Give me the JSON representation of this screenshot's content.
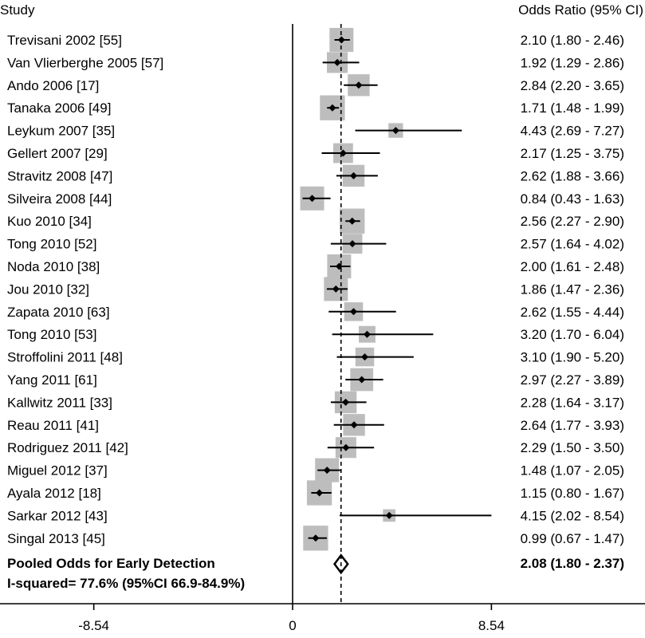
{
  "chart_data": {
    "type": "forest",
    "left_header": "Study",
    "right_header": "Odds Ratio (95% CI)",
    "x_ticks": [
      "-8.54",
      "0",
      "8.54"
    ],
    "x_tick_values": [
      -8.54,
      0,
      8.54
    ],
    "xlim": [
      -12.5,
      14.6
    ],
    "pooled_reference": 2.08,
    "studies": [
      {
        "label": "Trevisani 2002 [55]",
        "or": 2.1,
        "lo": 1.8,
        "hi": 2.46,
        "ci_text": "2.10 (1.80 - 2.46)",
        "weight": 1.0
      },
      {
        "label": "Van Vlierberghe 2005 [57]",
        "or": 1.92,
        "lo": 1.29,
        "hi": 2.86,
        "ci_text": "1.92 (1.29 - 2.86)",
        "weight": 0.85
      },
      {
        "label": "Ando 2006 [17]",
        "or": 2.84,
        "lo": 2.2,
        "hi": 3.65,
        "ci_text": "2.84 (2.20 - 3.65)",
        "weight": 0.9
      },
      {
        "label": "Tanaka 2006 [49]",
        "or": 1.71,
        "lo": 1.48,
        "hi": 1.99,
        "ci_text": "1.71 (1.48 - 1.99)",
        "weight": 1.05
      },
      {
        "label": "Leykum 2007 [35]",
        "or": 4.43,
        "lo": 2.69,
        "hi": 7.27,
        "ci_text": "4.43 (2.69 - 7.27)",
        "weight": 0.55
      },
      {
        "label": "Gellert 2007 [29]",
        "or": 2.17,
        "lo": 1.25,
        "hi": 3.75,
        "ci_text": "2.17 (1.25 - 3.75)",
        "weight": 0.8
      },
      {
        "label": "Stravitz 2008 [47]",
        "or": 2.62,
        "lo": 1.88,
        "hi": 3.66,
        "ci_text": "2.62 (1.88 - 3.66)",
        "weight": 0.9
      },
      {
        "label": "Silveira 2008 [44]",
        "or": 0.84,
        "lo": 0.43,
        "hi": 1.63,
        "ci_text": "0.84 (0.43 - 1.63)",
        "weight": 1.0
      },
      {
        "label": "Kuo 2010 [34]",
        "or": 2.56,
        "lo": 2.27,
        "hi": 2.9,
        "ci_text": "2.56 (2.27 - 2.90)",
        "weight": 1.05
      },
      {
        "label": "Tong 2010 [52]",
        "or": 2.57,
        "lo": 1.64,
        "hi": 4.02,
        "ci_text": "2.57 (1.64 - 4.02)",
        "weight": 0.8
      },
      {
        "label": "Noda 2010 [38]",
        "or": 2.0,
        "lo": 1.61,
        "hi": 2.48,
        "ci_text": "2.00 (1.61 - 2.48)",
        "weight": 1.0
      },
      {
        "label": "Jou 2010 [32]",
        "or": 1.86,
        "lo": 1.47,
        "hi": 2.36,
        "ci_text": "1.86 (1.47 - 2.36)",
        "weight": 1.0
      },
      {
        "label": "Zapata 2010 [63]",
        "or": 2.62,
        "lo": 1.55,
        "hi": 4.44,
        "ci_text": "2.62 (1.55 - 4.44)",
        "weight": 0.75
      },
      {
        "label": "Tong 2010 [53]",
        "or": 3.2,
        "lo": 1.7,
        "hi": 6.04,
        "ci_text": "3.20 (1.70 - 6.04)",
        "weight": 0.65
      },
      {
        "label": "Stroffolini 2011 [48]",
        "or": 3.1,
        "lo": 1.9,
        "hi": 5.2,
        "ci_text": "3.10 (1.90 - 5.20)",
        "weight": 0.75
      },
      {
        "label": "Yang 2011 [61]",
        "or": 2.97,
        "lo": 2.27,
        "hi": 3.89,
        "ci_text": "2.97 (2.27 - 3.89)",
        "weight": 0.95
      },
      {
        "label": "Kallwitz 2011 [33]",
        "or": 2.28,
        "lo": 1.64,
        "hi": 3.17,
        "ci_text": "2.28 (1.64 - 3.17)",
        "weight": 0.9
      },
      {
        "label": "Reau 2011 [41]",
        "or": 2.64,
        "lo": 1.77,
        "hi": 3.93,
        "ci_text": "2.64 (1.77 - 3.93)",
        "weight": 0.9
      },
      {
        "label": "Rodriguez 2011 [42]",
        "or": 2.29,
        "lo": 1.5,
        "hi": 3.5,
        "ci_text": "2.29 (1.50 - 3.50)",
        "weight": 0.85
      },
      {
        "label": "Miguel 2012 [37]",
        "or": 1.48,
        "lo": 1.07,
        "hi": 2.05,
        "ci_text": "1.48 (1.07 - 2.05)",
        "weight": 1.0
      },
      {
        "label": "Ayala 2012 [18]",
        "or": 1.15,
        "lo": 0.8,
        "hi": 1.67,
        "ci_text": "1.15 (0.80 - 1.67)",
        "weight": 1.05
      },
      {
        "label": "Sarkar 2012 [43]",
        "or": 4.15,
        "lo": 2.02,
        "hi": 8.54,
        "ci_text": "4.15 (2.02 - 8.54)",
        "weight": 0.45
      },
      {
        "label": "Singal 2013 [45]",
        "or": 0.99,
        "lo": 0.67,
        "hi": 1.47,
        "ci_text": "0.99 (0.67 - 1.47)",
        "weight": 1.05
      }
    ],
    "pooled": {
      "label": "Pooled Odds for Early Detection",
      "or": 2.08,
      "lo": 1.8,
      "hi": 2.37,
      "ci_text": "2.08 (1.80 - 2.37)",
      "heterogeneity": "I-squared= 77.6% (95%CI 66.9-84.9%)"
    },
    "colors": {
      "box": "#bdbdbd",
      "line": "#000000",
      "text": "#000000"
    }
  }
}
